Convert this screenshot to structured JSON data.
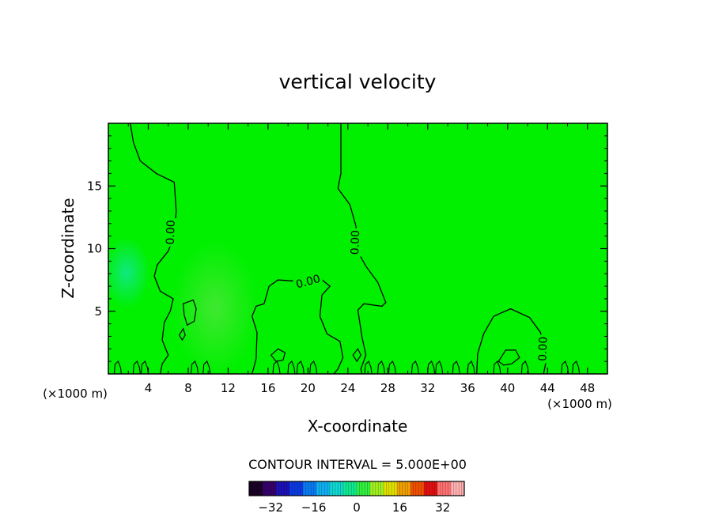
{
  "title": "vertical velocity",
  "chart_data": {
    "type": "contour",
    "title": "vertical velocity",
    "xlabel": "X-coordinate",
    "ylabel": "Z-coordinate",
    "x_unit": "(×1000 m)",
    "y_unit": "(×1000 m)",
    "xlim": [
      0,
      50
    ],
    "ylim": [
      0,
      20
    ],
    "x_ticks": [
      4,
      8,
      12,
      16,
      20,
      24,
      28,
      32,
      36,
      40,
      44,
      48
    ],
    "y_ticks": [
      5,
      10,
      15
    ],
    "field_colors": {
      "background": "#00f000",
      "positive_patch": "#40e830",
      "negative_patch": "#10e880"
    },
    "zero_contours": [
      {
        "name": "left",
        "label": "0.00",
        "label_at": [
          6.2,
          11.3
        ],
        "label_angle": -88,
        "points": [
          [
            2.2,
            20
          ],
          [
            2.5,
            18.5
          ],
          [
            3.2,
            17
          ],
          [
            4.8,
            16
          ],
          [
            6.6,
            15.3
          ],
          [
            6.8,
            13
          ],
          [
            6.6,
            11
          ],
          [
            6.0,
            9.8
          ],
          [
            4.9,
            8.7
          ],
          [
            4.6,
            7.8
          ],
          [
            5.2,
            6.6
          ],
          [
            6.5,
            6.0
          ],
          [
            6.2,
            5.0
          ],
          [
            5.6,
            4.1
          ],
          [
            5.4,
            2.7
          ],
          [
            6.0,
            1.5
          ],
          [
            5.4,
            0.8
          ],
          [
            5.2,
            0
          ]
        ]
      },
      {
        "name": "right",
        "label": "0.00",
        "label_at": [
          24.7,
          10.5
        ],
        "label_angle": -88,
        "points": [
          [
            23.3,
            20
          ],
          [
            23.3,
            16
          ],
          [
            23.0,
            14.8
          ],
          [
            24.2,
            13.5
          ],
          [
            24.8,
            11.8
          ],
          [
            25.1,
            9.6
          ],
          [
            25.8,
            8.6
          ],
          [
            27.0,
            7.3
          ],
          [
            27.8,
            5.7
          ],
          [
            27.4,
            5.4
          ],
          [
            25.6,
            5.6
          ],
          [
            25.0,
            5.1
          ],
          [
            25.4,
            3.0
          ],
          [
            25.8,
            1.5
          ],
          [
            25.3,
            0.4
          ],
          [
            25.4,
            0
          ]
        ]
      },
      {
        "name": "middle",
        "label": "0.00",
        "label_at": [
          20.0,
          7.4
        ],
        "label_angle": -15,
        "points": [
          [
            14.4,
            0
          ],
          [
            14.8,
            1.2
          ],
          [
            14.9,
            3.3
          ],
          [
            14.4,
            4.6
          ],
          [
            14.8,
            5.4
          ],
          [
            15.6,
            5.6
          ],
          [
            16.1,
            7.0
          ],
          [
            17.0,
            7.5
          ],
          [
            18.8,
            7.4
          ],
          [
            21.1,
            7.7
          ],
          [
            22.2,
            7.0
          ],
          [
            21.4,
            6.3
          ],
          [
            21.2,
            4.6
          ],
          [
            21.9,
            3.2
          ],
          [
            23.2,
            2.6
          ],
          [
            23.5,
            1.3
          ],
          [
            23.0,
            0.4
          ],
          [
            22.6,
            0
          ]
        ]
      },
      {
        "name": "far-right",
        "label": "0.00",
        "label_at": [
          43.5,
          2.0
        ],
        "label_angle": -88,
        "points": [
          [
            36.9,
            0
          ],
          [
            37.0,
            1.6
          ],
          [
            37.6,
            3.2
          ],
          [
            38.6,
            4.6
          ],
          [
            40.3,
            5.2
          ],
          [
            42.2,
            4.5
          ],
          [
            43.3,
            3.3
          ],
          [
            43.6,
            2.0
          ],
          [
            43.8,
            0.8
          ],
          [
            43.6,
            0
          ]
        ]
      }
    ],
    "closed_contours": [
      [
        [
          7.5,
          5.6
        ],
        [
          8.5,
          5.9
        ],
        [
          8.8,
          5.2
        ],
        [
          8.6,
          4.2
        ],
        [
          7.9,
          3.9
        ],
        [
          7.6,
          4.7
        ]
      ],
      [
        [
          7.1,
          3.1
        ],
        [
          7.5,
          3.6
        ],
        [
          7.7,
          3.1
        ],
        [
          7.4,
          2.7
        ]
      ],
      [
        [
          16.3,
          1.5
        ],
        [
          17.0,
          2.0
        ],
        [
          17.7,
          1.7
        ],
        [
          17.5,
          1.1
        ],
        [
          16.8,
          1.0
        ]
      ],
      [
        [
          39.1,
          1.0
        ],
        [
          39.8,
          1.9
        ],
        [
          40.8,
          1.9
        ],
        [
          41.2,
          1.3
        ],
        [
          40.4,
          0.8
        ],
        [
          39.6,
          0.7
        ]
      ],
      [
        [
          24.5,
          1.5
        ],
        [
          25.0,
          2.0
        ],
        [
          25.3,
          1.5
        ],
        [
          24.9,
          1.0
        ]
      ]
    ],
    "surface_wiggles_x": [
      0.9,
      2.8,
      3.6,
      8.6,
      9.8,
      16.8,
      18.3,
      19.2,
      20.5,
      26.0,
      27.3,
      28.4,
      30.7,
      32.3,
      33.1,
      34.8,
      36.3,
      38.9,
      41.7,
      45.7,
      46.8
    ],
    "legend": {
      "contour_interval_text": "CONTOUR INTERVAL = 5.000E+00",
      "colorbar_range": [
        -40,
        40
      ],
      "colorbar_ticks": [
        -32,
        -16,
        0,
        16,
        32
      ],
      "colorbar_colors": [
        "#1a0026",
        "#35006a",
        "#1d10b4",
        "#0a3ae0",
        "#0a7af0",
        "#10b0f0",
        "#10d8d0",
        "#10e890",
        "#30f040",
        "#a0f020",
        "#e0e000",
        "#f0a000",
        "#f05000",
        "#e01010",
        "#ff7070",
        "#ffb0b0"
      ]
    }
  }
}
